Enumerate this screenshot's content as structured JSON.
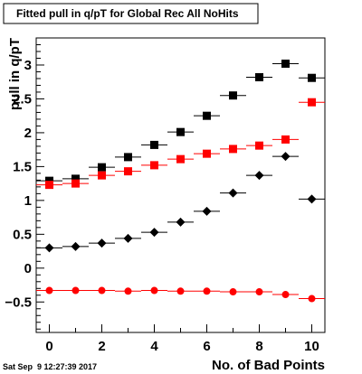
{
  "chart_data": {
    "type": "scatter",
    "title": "Fitted pull in q/pT for Global Rec All NoHits",
    "xlabel": "No. of Bad Points",
    "ylabel": "pull in q/pT",
    "timestamp": "Sat Sep  9 12:27:39 2017",
    "xlim": [
      -0.5,
      10.5
    ],
    "ylim": [
      -0.95,
      3.4
    ],
    "xticks": [
      0,
      2,
      4,
      6,
      8,
      10
    ],
    "yticks": [
      -0.5,
      0,
      0.5,
      1,
      1.5,
      2,
      2.5,
      3
    ],
    "ytick_labels": [
      "−0.5",
      "0",
      "0.5",
      "1",
      "1.5",
      "2",
      "2.5",
      "3"
    ],
    "grid": false,
    "series": [
      {
        "marker": "square",
        "color": "#000000",
        "x": [
          0,
          1,
          2,
          3,
          4,
          5,
          6,
          7,
          8,
          9,
          10
        ],
        "y": [
          1.29,
          1.32,
          1.49,
          1.64,
          1.82,
          2.01,
          2.25,
          2.55,
          2.82,
          3.02,
          2.81
        ]
      },
      {
        "marker": "square",
        "color": "#ff0000",
        "x": [
          0,
          1,
          2,
          3,
          4,
          5,
          6,
          7,
          8,
          9,
          10
        ],
        "y": [
          1.23,
          1.25,
          1.37,
          1.43,
          1.52,
          1.61,
          1.69,
          1.76,
          1.81,
          1.9,
          2.45
        ]
      },
      {
        "marker": "diamond",
        "color": "#000000",
        "x": [
          0,
          1,
          2,
          3,
          4,
          5,
          6,
          7,
          8,
          9,
          10
        ],
        "y": [
          0.3,
          0.32,
          0.37,
          0.44,
          0.53,
          0.68,
          0.84,
          1.11,
          1.37,
          1.65,
          1.02
        ]
      },
      {
        "marker": "circle",
        "color": "#ff0000",
        "x": [
          0,
          1,
          2,
          3,
          4,
          5,
          6,
          7,
          8,
          9,
          10
        ],
        "y": [
          -0.33,
          -0.33,
          -0.33,
          -0.34,
          -0.33,
          -0.34,
          -0.34,
          -0.35,
          -0.35,
          -0.39,
          -0.45
        ]
      }
    ]
  }
}
